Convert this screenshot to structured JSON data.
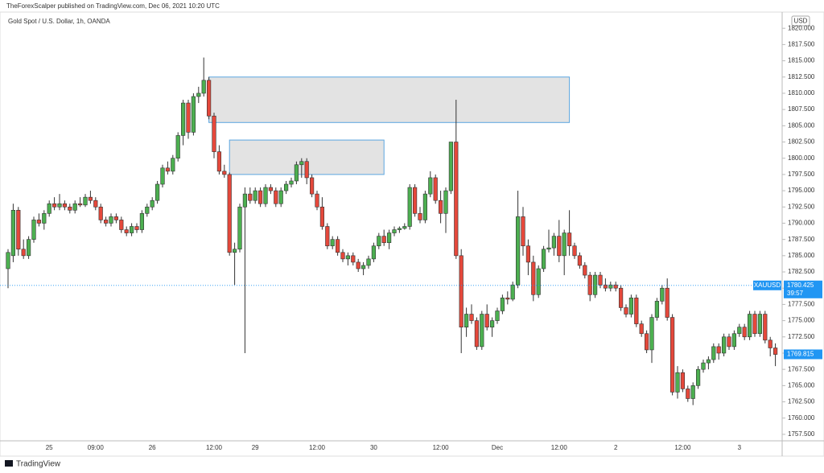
{
  "header": {
    "publisher": "TheForexScalper published on TradingView.com, Dec 06, 2021 10:20 UTC",
    "footer": "TradingView"
  },
  "chart_data": {
    "type": "candlestick",
    "title": "Gold Spot / U.S. Dollar, 1h, OANDA",
    "currency": "USD",
    "up_color": "#4caf50",
    "down_color": "#e5483b",
    "wick_color": "#333333",
    "categories": [
      null,
      null,
      null,
      null,
      null,
      null,
      null,
      null,
      "25",
      null,
      null,
      null,
      null,
      null,
      null,
      null,
      null,
      "09:00",
      null,
      null,
      null,
      null,
      null,
      null,
      null,
      null,
      null,
      null,
      "26",
      null,
      null,
      null,
      null,
      null,
      null,
      null,
      null,
      null,
      null,
      null,
      "12:00",
      null,
      null,
      null,
      null,
      null,
      null,
      null,
      "29",
      null,
      null,
      null,
      null,
      null,
      null,
      null,
      null,
      null,
      null,
      null,
      "12:00",
      null,
      null,
      null,
      null,
      null,
      null,
      null,
      null,
      null,
      null,
      "30",
      null,
      null,
      null,
      null,
      null,
      null,
      null,
      null,
      null,
      null,
      null,
      null,
      "12:00",
      null,
      null,
      null,
      null,
      null,
      null,
      null,
      null,
      null,
      null,
      "Dec",
      null,
      null,
      null,
      null,
      null,
      null,
      null,
      null,
      null,
      null,
      null,
      "12:00",
      null,
      null,
      null,
      null,
      null,
      null,
      null,
      null,
      null,
      null,
      "2",
      null,
      null,
      null,
      null,
      null,
      null,
      null,
      null,
      null,
      null,
      null,
      null,
      "12:00",
      null,
      null,
      null,
      null,
      null,
      null,
      null,
      null,
      null,
      null,
      "3",
      null,
      null,
      null,
      null,
      null,
      null,
      null
    ],
    "ohlc": [
      [
        1783,
        1786,
        1780,
        1785.5
      ],
      [
        1785,
        1793,
        1784,
        1792
      ],
      [
        1792,
        1792.5,
        1785,
        1786
      ],
      [
        1786,
        1787.5,
        1784.5,
        1785
      ],
      [
        1785,
        1788,
        1784.5,
        1787.5
      ],
      [
        1787.5,
        1791,
        1787,
        1790.5
      ],
      [
        1790.5,
        1791.5,
        1789.5,
        1790
      ],
      [
        1790,
        1792,
        1789,
        1791.5
      ],
      [
        1791.5,
        1793.5,
        1791,
        1793
      ],
      [
        1793,
        1794,
        1792,
        1792.5
      ],
      [
        1792.5,
        1794.5,
        1792,
        1793
      ],
      [
        1793,
        1793.5,
        1792,
        1792.5
      ],
      [
        1792.5,
        1793,
        1791.5,
        1792
      ],
      [
        1792,
        1793.5,
        1791.5,
        1793
      ],
      [
        1793,
        1794,
        1792.5,
        1792.8
      ],
      [
        1792.8,
        1794.5,
        1792.5,
        1794
      ],
      [
        1794,
        1795,
        1793,
        1793.5
      ],
      [
        1793.5,
        1794,
        1792,
        1792.5
      ],
      [
        1792.5,
        1793,
        1790,
        1790.5
      ],
      [
        1790.5,
        1791,
        1789.5,
        1790
      ],
      [
        1790,
        1791.5,
        1789.5,
        1791
      ],
      [
        1791,
        1791.5,
        1790,
        1790.5
      ],
      [
        1790.5,
        1791,
        1788.5,
        1789
      ],
      [
        1789,
        1789.5,
        1788,
        1788.5
      ],
      [
        1788.5,
        1790,
        1788,
        1789.5
      ],
      [
        1789.5,
        1790,
        1788.5,
        1789
      ],
      [
        1789,
        1792,
        1788.5,
        1791.5
      ],
      [
        1791.5,
        1793,
        1791,
        1792.5
      ],
      [
        1792.5,
        1794,
        1792,
        1793.5
      ],
      [
        1793.5,
        1796.5,
        1793,
        1796
      ],
      [
        1796,
        1799,
        1795.5,
        1798.5
      ],
      [
        1798.5,
        1799.5,
        1797.5,
        1798
      ],
      [
        1798,
        1800.5,
        1797.5,
        1800
      ],
      [
        1800,
        1804,
        1799.5,
        1803.5
      ],
      [
        1803.5,
        1809,
        1802,
        1808.5
      ],
      [
        1808.5,
        1809,
        1803,
        1804
      ],
      [
        1804,
        1810,
        1803.5,
        1809.5
      ],
      [
        1809.5,
        1811,
        1808.5,
        1810
      ],
      [
        1810,
        1815.5,
        1809.5,
        1812
      ],
      [
        1812,
        1812.5,
        1806,
        1806.5
      ],
      [
        1806.5,
        1807,
        1800,
        1801
      ],
      [
        1801,
        1802,
        1797.5,
        1798
      ],
      [
        1798,
        1799,
        1797,
        1797.5
      ],
      [
        1797.5,
        1797.8,
        1785,
        1785.5
      ],
      [
        1785.5,
        1787,
        1780.5,
        1786
      ],
      [
        1786,
        1793,
        1785.5,
        1792.5
      ],
      [
        1792.5,
        1795.5,
        1770,
        1794.5
      ],
      [
        1794.5,
        1795.5,
        1793,
        1793.5
      ],
      [
        1793.5,
        1795.5,
        1793,
        1795
      ],
      [
        1795,
        1795.5,
        1792.5,
        1793
      ],
      [
        1793,
        1796,
        1792.5,
        1795.5
      ],
      [
        1795.5,
        1796,
        1794.5,
        1795
      ],
      [
        1795,
        1795.5,
        1792.5,
        1793
      ],
      [
        1793,
        1795.5,
        1792.5,
        1795
      ],
      [
        1795,
        1796.5,
        1794.5,
        1796
      ],
      [
        1796,
        1797,
        1795.5,
        1796.5
      ],
      [
        1796.5,
        1799.5,
        1796,
        1799
      ],
      [
        1799,
        1800,
        1797,
        1799.5
      ],
      [
        1799.5,
        1800,
        1796,
        1797
      ],
      [
        1797,
        1797.5,
        1794,
        1794.5
      ],
      [
        1794.5,
        1795,
        1792,
        1792.5
      ],
      [
        1792.5,
        1794,
        1789,
        1789.5
      ],
      [
        1789.5,
        1790,
        1786,
        1786.5
      ],
      [
        1786.5,
        1788,
        1786,
        1787.5
      ],
      [
        1787.5,
        1788,
        1785,
        1785.5
      ],
      [
        1785.5,
        1786,
        1784,
        1784.5
      ],
      [
        1784.5,
        1785.5,
        1783.5,
        1785
      ],
      [
        1785,
        1785.5,
        1783.5,
        1784
      ],
      [
        1784,
        1784.5,
        1782.5,
        1783
      ],
      [
        1783,
        1784,
        1782,
        1783.5
      ],
      [
        1783.5,
        1785,
        1783,
        1784.5
      ],
      [
        1784.5,
        1787,
        1784,
        1786.5
      ],
      [
        1786.5,
        1788.5,
        1786,
        1788
      ],
      [
        1788,
        1789,
        1786.5,
        1787
      ],
      [
        1787,
        1789,
        1786,
        1788.5
      ],
      [
        1788.5,
        1789.5,
        1788,
        1789
      ],
      [
        1789,
        1789.5,
        1788.5,
        1789.2
      ],
      [
        1789.2,
        1790,
        1789,
        1789.5
      ],
      [
        1789.5,
        1796,
        1789,
        1795.5
      ],
      [
        1795.5,
        1796,
        1791,
        1791.5
      ],
      [
        1791.5,
        1792.5,
        1790,
        1790.5
      ],
      [
        1790.5,
        1795,
        1790,
        1794.5
      ],
      [
        1794.5,
        1798,
        1794,
        1797
      ],
      [
        1797,
        1797.5,
        1793,
        1793.5
      ],
      [
        1793.5,
        1795,
        1790,
        1791.5
      ],
      [
        1791.5,
        1795.5,
        1788.5,
        1795
      ],
      [
        1795,
        1802.5,
        1794.5,
        1802.5
      ],
      [
        1802.5,
        1809,
        1784.5,
        1785
      ],
      [
        1785,
        1786,
        1770,
        1774
      ],
      [
        1774,
        1777,
        1772.5,
        1776
      ],
      [
        1776,
        1777.5,
        1774.5,
        1775
      ],
      [
        1775,
        1775.5,
        1770.5,
        1771
      ],
      [
        1771,
        1776.5,
        1770.5,
        1776
      ],
      [
        1776,
        1777.5,
        1773.5,
        1774
      ],
      [
        1774,
        1775.5,
        1772.5,
        1775
      ],
      [
        1775,
        1777,
        1774.5,
        1776.5
      ],
      [
        1776.5,
        1779,
        1776,
        1778.5
      ],
      [
        1778.5,
        1779.5,
        1777.5,
        1778.3
      ],
      [
        1778.3,
        1781,
        1778,
        1780.5
      ],
      [
        1780.5,
        1795,
        1780,
        1791
      ],
      [
        1791,
        1792.5,
        1785,
        1786.5
      ],
      [
        1786.5,
        1787.5,
        1782,
        1784
      ],
      [
        1784,
        1785,
        1778,
        1779
      ],
      [
        1779,
        1783.5,
        1778.5,
        1783
      ],
      [
        1783,
        1786.5,
        1782.5,
        1786
      ],
      [
        1786,
        1789,
        1785.5,
        1786.2
      ],
      [
        1786.2,
        1788.5,
        1785,
        1788
      ],
      [
        1788,
        1790.5,
        1784,
        1785
      ],
      [
        1785,
        1789,
        1782,
        1788.5
      ],
      [
        1788.5,
        1792,
        1785,
        1786.5
      ],
      [
        1786.5,
        1787,
        1784.5,
        1785
      ],
      [
        1785,
        1785.5,
        1783,
        1783.5
      ],
      [
        1783.5,
        1784,
        1781.5,
        1782
      ],
      [
        1782,
        1782.5,
        1778,
        1779
      ],
      [
        1779,
        1782.5,
        1778.5,
        1782
      ],
      [
        1782,
        1782.5,
        1780,
        1780.5
      ],
      [
        1780.5,
        1781.5,
        1779.5,
        1780
      ],
      [
        1780,
        1781,
        1779.5,
        1780.5
      ],
      [
        1780.5,
        1781,
        1779.5,
        1780
      ],
      [
        1780,
        1780.5,
        1776.5,
        1777
      ],
      [
        1777,
        1777.5,
        1775.5,
        1776
      ],
      [
        1776,
        1779,
        1775.5,
        1778.5
      ],
      [
        1778.5,
        1779,
        1774,
        1774.5
      ],
      [
        1774.5,
        1775,
        1772.5,
        1773
      ],
      [
        1773,
        1773.5,
        1770,
        1770.5
      ],
      [
        1770.5,
        1776,
        1768.5,
        1775.5
      ],
      [
        1775.5,
        1778.5,
        1775,
        1778
      ],
      [
        1778,
        1780.5,
        1777.5,
        1780
      ],
      [
        1780,
        1781.5,
        1775,
        1775.5
      ],
      [
        1775.5,
        1776,
        1763.5,
        1764
      ],
      [
        1764,
        1768,
        1763,
        1767
      ],
      [
        1767,
        1767.5,
        1764,
        1764.5
      ],
      [
        1764.5,
        1765,
        1762.5,
        1763
      ],
      [
        1763,
        1765.5,
        1762,
        1765
      ],
      [
        1765,
        1768,
        1764.5,
        1767.5
      ],
      [
        1767.5,
        1769,
        1767,
        1768.5
      ],
      [
        1768.5,
        1769.5,
        1767.5,
        1769
      ],
      [
        1769,
        1771.5,
        1768.5,
        1771
      ],
      [
        1771,
        1771.5,
        1769,
        1770
      ],
      [
        1770,
        1773,
        1769.5,
        1772.5
      ],
      [
        1772.5,
        1773,
        1770.5,
        1771
      ],
      [
        1771,
        1773.5,
        1770.5,
        1773
      ],
      [
        1773,
        1774.5,
        1772.5,
        1774
      ],
      [
        1774,
        1774.5,
        1772,
        1772.5
      ],
      [
        1772.5,
        1776.5,
        1772,
        1776
      ],
      [
        1776,
        1776.5,
        1772.5,
        1773
      ],
      [
        1773,
        1776.5,
        1772.5,
        1776
      ],
      [
        1776,
        1776.5,
        1771.5,
        1772
      ],
      [
        1772,
        1772.5,
        1769.5,
        1770.8
      ],
      [
        1770.8,
        1771.5,
        1768,
        1769.8
      ]
    ],
    "zones": [
      {
        "price_range": [
          1805.5,
          1812.5
        ],
        "index_range": [
          39,
          109
        ]
      },
      {
        "price_range": [
          1797.5,
          1802.8
        ],
        "index_range": [
          43,
          73
        ]
      }
    ],
    "current_price": {
      "symbol": "XAUUSD",
      "value": 1780.425,
      "label": "1780.425",
      "countdown": "39:57"
    },
    "last_price": {
      "value": 1769.815,
      "label": "1769.815"
    },
    "ylim": [
      1756.5,
      1822.5
    ],
    "yticks": [
      {
        "value": 1757.5,
        "label": "1757.500"
      },
      {
        "value": 1760,
        "label": "1760.000"
      },
      {
        "value": 1762.5,
        "label": "1762.500"
      },
      {
        "value": 1765,
        "label": "1765.000"
      },
      {
        "value": 1767.5,
        "label": "1767.500"
      },
      {
        "value": 1770,
        "label": "1770.000"
      },
      {
        "value": 1772.5,
        "label": "1772.500"
      },
      {
        "value": 1775,
        "label": "1775.000"
      },
      {
        "value": 1777.5,
        "label": "1777.500"
      },
      {
        "value": 1780,
        "label": "1780.000"
      },
      {
        "value": 1782.5,
        "label": "1782.500"
      },
      {
        "value": 1785,
        "label": "1785.000"
      },
      {
        "value": 1787.5,
        "label": "1787.500"
      },
      {
        "value": 1790,
        "label": "1790.000"
      },
      {
        "value": 1792.5,
        "label": "1792.500"
      },
      {
        "value": 1795,
        "label": "1795.000"
      },
      {
        "value": 1797.5,
        "label": "1797.500"
      },
      {
        "value": 1800,
        "label": "1800.000"
      },
      {
        "value": 1802.5,
        "label": "1802.500"
      },
      {
        "value": 1805,
        "label": "1805.000"
      },
      {
        "value": 1807.5,
        "label": "1807.500"
      },
      {
        "value": 1810,
        "label": "1810.000"
      },
      {
        "value": 1812.5,
        "label": "1812.500"
      },
      {
        "value": 1815,
        "label": "1815.000"
      },
      {
        "value": 1817.5,
        "label": "1817.500"
      },
      {
        "value": 1820,
        "label": "1820.000"
      }
    ]
  }
}
